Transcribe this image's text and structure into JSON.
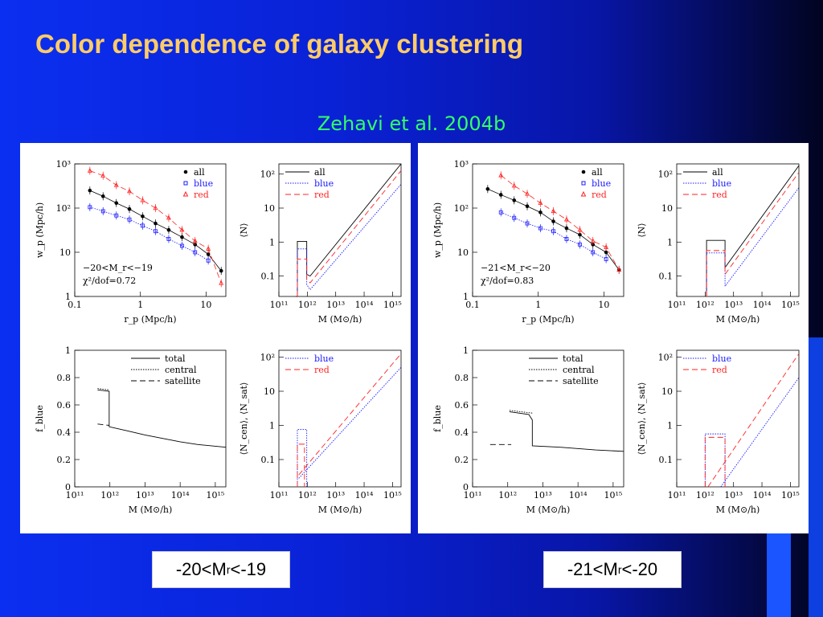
{
  "slide": {
    "title": "Color dependence of galaxy clustering",
    "citation": "Zehavi et al. 2004b"
  },
  "labels": {
    "left": {
      "pre": "-20<M",
      "sub": "r",
      "post": "<-19"
    },
    "right": {
      "pre": "-21<M",
      "sub": "r",
      "post": "<-20"
    }
  },
  "colors": {
    "all": "#000000",
    "blue": "#1a1aff",
    "red": "#ff2222",
    "total": "#000000"
  },
  "chart_data": [
    {
      "type": "scatter",
      "panel": "left",
      "position": "top-left",
      "xlabel": "r_p (Mpc/h)",
      "ylabel": "w_p (Mpc/h)",
      "xlim": [
        0.1,
        20
      ],
      "ylim": [
        1,
        1000
      ],
      "xscale": "log",
      "yscale": "log",
      "xticks": [
        "0.1",
        "1",
        "10"
      ],
      "yticks": [
        "1",
        "10",
        "10²",
        "10³"
      ],
      "legend": [
        "all",
        "blue",
        "red"
      ],
      "legend_position": "top-right",
      "annotations": [
        "−20<M_r<−19",
        "χ²/dof=0.72"
      ],
      "series": [
        {
          "name": "all",
          "x": [
            0.17,
            0.27,
            0.43,
            0.68,
            1.08,
            1.7,
            2.7,
            4.3,
            6.8,
            10.8,
            17
          ],
          "y": [
            250,
            185,
            130,
            95,
            65,
            45,
            32,
            22,
            15,
            9,
            3.8
          ]
        },
        {
          "name": "blue",
          "x": [
            0.17,
            0.27,
            0.43,
            0.68,
            1.08,
            1.7,
            2.7,
            4.3,
            6.8,
            10.8
          ],
          "y": [
            105,
            85,
            68,
            55,
            40,
            30,
            20,
            14,
            10,
            6.5
          ]
        },
        {
          "name": "red",
          "x": [
            0.17,
            0.27,
            0.43,
            0.68,
            1.08,
            1.7,
            2.7,
            4.3,
            6.8,
            10.8,
            17
          ],
          "y": [
            700,
            540,
            330,
            240,
            150,
            100,
            60,
            32,
            18,
            12,
            2
          ]
        }
      ]
    },
    {
      "type": "line",
      "panel": "left",
      "position": "top-right",
      "xlabel": "M (M⊙/h)",
      "ylabel": "⟨N⟩",
      "xlim": [
        11,
        15.3
      ],
      "ylim": [
        -1.6,
        2.3
      ],
      "xscale": "log",
      "yscale": "log",
      "xticks": [
        "10¹¹",
        "10¹²",
        "10¹³",
        "10¹⁴",
        "10¹⁵"
      ],
      "yticks": [
        "0.1",
        "1",
        "10",
        "10²"
      ],
      "legend": [
        "all",
        "blue",
        "red"
      ],
      "legend_position": "top-left",
      "series": [
        {
          "name": "all",
          "x": [
            11.6,
            11.65,
            11.65,
            11.98,
            11.98,
            12.1,
            15.3
          ],
          "y": [
            -1.6,
            -1.6,
            0.02,
            0.02,
            -0.95,
            -1.0,
            2.3
          ]
        },
        {
          "name": "blue",
          "x": [
            11.65,
            11.65,
            11.98,
            11.98,
            12.1,
            15.3
          ],
          "y": [
            -1.6,
            -0.2,
            -0.2,
            -1.25,
            -1.4,
            1.7
          ]
        },
        {
          "name": "red",
          "x": [
            11.65,
            11.65,
            11.98,
            11.98,
            12.1,
            15.3
          ],
          "y": [
            -1.6,
            -0.5,
            -0.5,
            -1.1,
            -1.2,
            2.1
          ]
        }
      ]
    },
    {
      "type": "line",
      "panel": "left",
      "position": "bottom-left",
      "xlabel": "M (M⊙/h)",
      "ylabel": "f_blue",
      "xlim": [
        11,
        15.3
      ],
      "ylim": [
        0,
        1
      ],
      "xscale": "log",
      "xticks": [
        "10¹¹",
        "10¹²",
        "10¹³",
        "10¹⁴",
        "10¹⁵"
      ],
      "yticks": [
        "0",
        "0.2",
        "0.4",
        "0.6",
        "0.8",
        "1"
      ],
      "legend": [
        "total",
        "central",
        "satellite"
      ],
      "legend_position": "top-right",
      "series": [
        {
          "name": "total",
          "x": [
            11.65,
            11.98,
            11.98,
            12.5,
            13,
            13.5,
            14,
            14.5,
            15.3
          ],
          "y": [
            0.71,
            0.7,
            0.44,
            0.41,
            0.38,
            0.355,
            0.33,
            0.31,
            0.29
          ]
        },
        {
          "name": "central",
          "x": [
            11.65,
            11.98
          ],
          "y": [
            0.72,
            0.71
          ]
        },
        {
          "name": "satellite",
          "x": [
            11.65,
            11.98
          ],
          "y": [
            0.46,
            0.45
          ]
        }
      ]
    },
    {
      "type": "line",
      "panel": "left",
      "position": "bottom-right",
      "xlabel": "M (M⊙/h)",
      "ylabel": "⟨N_cen⟩, ⟨N_sat⟩",
      "xlim": [
        11,
        15.3
      ],
      "ylim": [
        -1.8,
        2.2
      ],
      "xscale": "log",
      "yscale": "log",
      "xticks": [
        "10¹¹",
        "10¹²",
        "10¹³",
        "10¹⁴",
        "10¹⁵"
      ],
      "yticks": [
        "0.1",
        "1",
        "10",
        "10²"
      ],
      "legend": [
        "blue",
        "red"
      ],
      "legend_position": "top-left",
      "series": [
        {
          "name": "blue",
          "x": [
            11.65,
            11.65,
            11.98,
            11.98
          ],
          "y": [
            -1.8,
            -0.12,
            -0.12,
            -1.8
          ]
        },
        {
          "name": "red",
          "x": [
            11.65,
            11.65,
            11.9,
            11.9
          ],
          "y": [
            -1.8,
            -0.55,
            -0.55,
            -1.8
          ]
        },
        {
          "name": "blue-sat",
          "x": [
            11.7,
            15.3
          ],
          "y": [
            -1.55,
            1.7
          ]
        },
        {
          "name": "red-sat",
          "x": [
            11.7,
            15.3
          ],
          "y": [
            -1.45,
            2.1
          ]
        }
      ]
    },
    {
      "type": "scatter",
      "panel": "right",
      "position": "top-left",
      "xlabel": "r_p (Mpc/h)",
      "ylabel": "w_p (Mpc/h)",
      "xlim": [
        0.1,
        20
      ],
      "ylim": [
        1,
        1000
      ],
      "xscale": "log",
      "yscale": "log",
      "xticks": [
        "0.1",
        "1",
        "10"
      ],
      "yticks": [
        "1",
        "10",
        "10²",
        "10³"
      ],
      "legend": [
        "all",
        "blue",
        "red"
      ],
      "legend_position": "top-right",
      "annotations": [
        "−21<M_r<−20",
        "χ²/dof=0.83"
      ],
      "series": [
        {
          "name": "all",
          "x": [
            0.17,
            0.27,
            0.43,
            0.68,
            1.08,
            1.7,
            2.7,
            4.3,
            6.8,
            10.8,
            17
          ],
          "y": [
            270,
            200,
            150,
            110,
            80,
            50,
            35,
            25,
            15,
            10,
            4
          ]
        },
        {
          "name": "blue",
          "x": [
            0.27,
            0.43,
            0.68,
            1.08,
            1.7,
            2.7,
            4.3,
            6.8,
            10.8
          ],
          "y": [
            80,
            60,
            45,
            35,
            30,
            20,
            15,
            10,
            7
          ]
        },
        {
          "name": "red",
          "x": [
            0.27,
            0.43,
            0.68,
            1.08,
            1.7,
            2.7,
            4.3,
            6.8,
            10.8,
            17
          ],
          "y": [
            550,
            320,
            210,
            130,
            85,
            55,
            32,
            18,
            13,
            4
          ]
        }
      ]
    },
    {
      "type": "line",
      "panel": "right",
      "position": "top-right",
      "xlabel": "M (M⊙/h)",
      "ylabel": "⟨N⟩",
      "xlim": [
        11,
        15.3
      ],
      "ylim": [
        -1.6,
        2.3
      ],
      "xscale": "log",
      "yscale": "log",
      "xticks": [
        "10¹¹",
        "10¹²",
        "10¹³",
        "10¹⁴",
        "10¹⁵"
      ],
      "yticks": [
        "0.1",
        "1",
        "10",
        "10²"
      ],
      "legend": [
        "all",
        "blue",
        "red"
      ],
      "legend_position": "top-left",
      "series": [
        {
          "name": "all",
          "x": [
            12.05,
            12.05,
            12.7,
            12.7,
            15.3
          ],
          "y": [
            -1.6,
            0.05,
            0.05,
            -0.75,
            2.25
          ]
        },
        {
          "name": "blue",
          "x": [
            12.05,
            12.05,
            12.7,
            12.7,
            15.3
          ],
          "y": [
            -1.6,
            -0.32,
            -0.32,
            -1.3,
            1.6
          ]
        },
        {
          "name": "red",
          "x": [
            12.05,
            12.05,
            12.7,
            12.7,
            15.3
          ],
          "y": [
            -1.6,
            -0.25,
            -0.25,
            -0.95,
            2.05
          ]
        }
      ]
    },
    {
      "type": "line",
      "panel": "right",
      "position": "bottom-left",
      "xlabel": "M (M⊙/h)",
      "ylabel": "f_blue",
      "xlim": [
        11,
        15.3
      ],
      "ylim": [
        0,
        1
      ],
      "xscale": "log",
      "xticks": [
        "10¹¹",
        "10¹²",
        "10¹³",
        "10¹⁴",
        "10¹⁵"
      ],
      "yticks": [
        "0",
        "0.2",
        "0.4",
        "0.6",
        "0.8",
        "1"
      ],
      "legend": [
        "total",
        "central",
        "satellite"
      ],
      "legend_position": "top-right",
      "series": [
        {
          "name": "total",
          "x": [
            12.05,
            12.6,
            12.7,
            12.7,
            13.5,
            14.5,
            15.3
          ],
          "y": [
            0.55,
            0.53,
            0.49,
            0.3,
            0.29,
            0.27,
            0.26
          ]
        },
        {
          "name": "central",
          "x": [
            12.05,
            12.7
          ],
          "y": [
            0.56,
            0.54
          ]
        },
        {
          "name": "satellite",
          "x": [
            11.5,
            12.1
          ],
          "y": [
            0.31,
            0.31
          ]
        }
      ]
    },
    {
      "type": "line",
      "panel": "right",
      "position": "bottom-right",
      "xlabel": "M (M⊙/h)",
      "ylabel": "⟨N_cen⟩, ⟨N_sat⟩",
      "xlim": [
        11,
        15.3
      ],
      "ylim": [
        -1.8,
        2.2
      ],
      "xscale": "log",
      "yscale": "log",
      "xticks": [
        "10¹¹",
        "10¹²",
        "10¹³",
        "10¹⁴",
        "10¹⁵"
      ],
      "yticks": [
        "0.1",
        "1",
        "10",
        "10²"
      ],
      "legend": [
        "blue",
        "red"
      ],
      "legend_position": "top-left",
      "series": [
        {
          "name": "blue",
          "x": [
            12.0,
            12.0,
            12.7,
            12.7
          ],
          "y": [
            -1.8,
            -0.25,
            -0.25,
            -1.8
          ]
        },
        {
          "name": "red",
          "x": [
            12.0,
            12.0,
            12.7,
            12.7
          ],
          "y": [
            -1.8,
            -0.35,
            -0.35,
            -1.8
          ]
        },
        {
          "name": "blue-sat",
          "x": [
            12.55,
            15.3
          ],
          "y": [
            -1.8,
            1.4
          ]
        },
        {
          "name": "red-sat",
          "x": [
            12.1,
            15.3
          ],
          "y": [
            -1.8,
            2.1
          ]
        }
      ]
    }
  ]
}
